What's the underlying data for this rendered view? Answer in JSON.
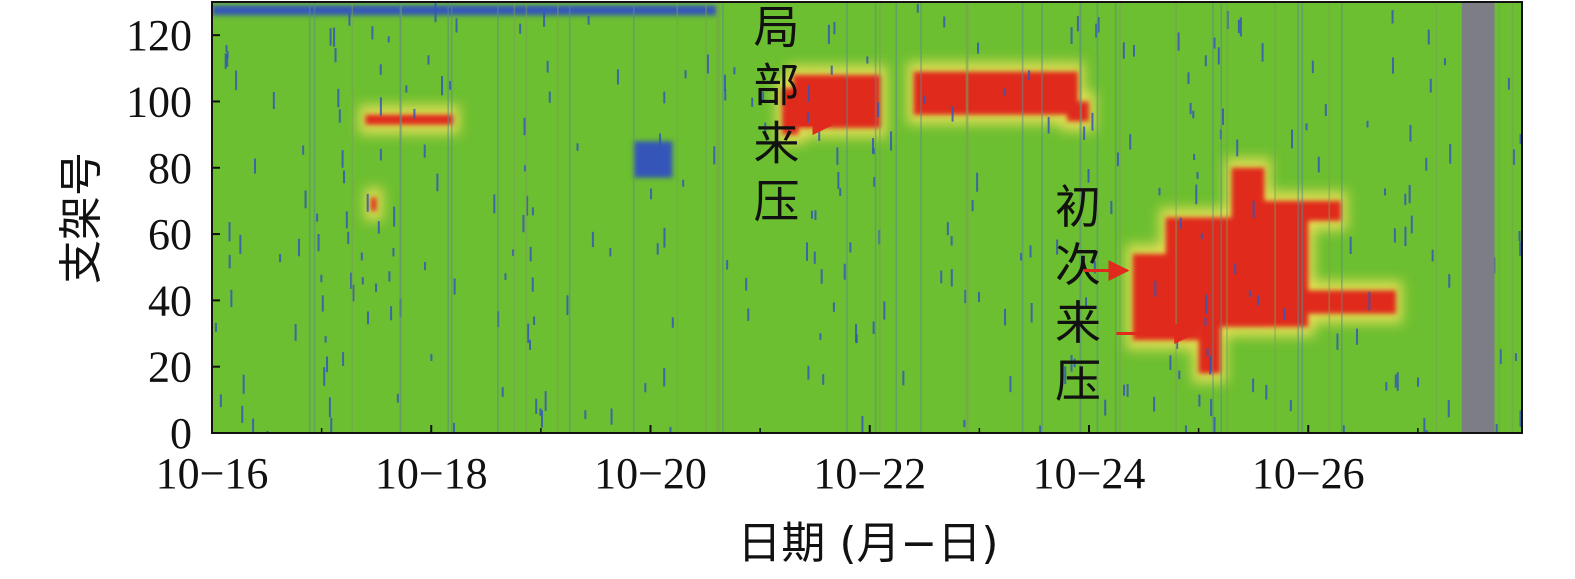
{
  "chart_data": {
    "type": "heatmap",
    "xlabel": "日期 (月−日)",
    "ylabel": "支架号",
    "x_ticks": [
      "10−16",
      "10−18",
      "10−20",
      "10−22",
      "10−24",
      "10−26"
    ],
    "y_ticks": [
      "0",
      "20",
      "40",
      "60",
      "80",
      "100",
      "120"
    ],
    "xlim": [
      0,
      11.95
    ],
    "ylim": [
      0,
      130
    ],
    "colors": {
      "background": "#6cbf30",
      "low": "#3456b8",
      "mid": "#e6de55",
      "high": "#e02a1e",
      "missing": "#7d7d86"
    },
    "high_pressure_regions": [
      {
        "x": [
          1.4,
          2.2
        ],
        "y": [
          93,
          96
        ]
      },
      {
        "x": [
          1.45,
          1.5
        ],
        "y": [
          67,
          71
        ]
      },
      {
        "x": [
          5.2,
          5.35
        ],
        "y": [
          90,
          104
        ]
      },
      {
        "x": [
          5.3,
          6.1
        ],
        "y": [
          92,
          108
        ]
      },
      {
        "x": [
          6.4,
          7.9
        ],
        "y": [
          96,
          109
        ]
      },
      {
        "x": [
          7.8,
          8.0
        ],
        "y": [
          94,
          100
        ]
      },
      {
        "x": [
          8.4,
          9.0
        ],
        "y": [
          28,
          54
        ]
      },
      {
        "x": [
          8.7,
          10.0
        ],
        "y": [
          32,
          65
        ]
      },
      {
        "x": [
          9.0,
          9.2
        ],
        "y": [
          18,
          60
        ]
      },
      {
        "x": [
          9.3,
          9.6
        ],
        "y": [
          55,
          80
        ]
      },
      {
        "x": [
          9.5,
          10.3
        ],
        "y": [
          64,
          70
        ]
      },
      {
        "x": [
          9.6,
          10.8
        ],
        "y": [
          36,
          43
        ]
      }
    ],
    "low_pressure_regions": [
      {
        "x": [
          0.0,
          4.6
        ],
        "y": [
          126,
          129
        ]
      },
      {
        "x": [
          3.85,
          4.2
        ],
        "y": [
          77,
          88
        ]
      }
    ],
    "missing_regions": [
      {
        "x": [
          11.4,
          11.7
        ],
        "y": [
          0,
          130
        ]
      }
    ],
    "annotations": [
      {
        "text": "局部来压",
        "x": 5.15,
        "y": 96
      },
      {
        "text": "初次来压",
        "x": 7.9,
        "y": 42
      }
    ]
  }
}
